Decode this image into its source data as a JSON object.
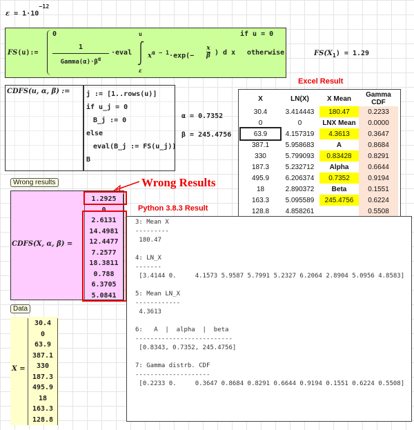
{
  "epsilon": {
    "lhs": "ε",
    "rhs": "1·10",
    "exp": "−12"
  },
  "fs_def": {
    "name": "FS",
    "arg": "u",
    "assign": ":=",
    "case1_value": "0",
    "case1_cond": "if  u = 0",
    "numerator": "1",
    "denominator": "Gamma(α)·β",
    "den_exp": "α",
    "eval": "·eval",
    "integrand": "x",
    "int_exp": "α − 1",
    "exp_part": "·exp(−",
    "frac_num": "x",
    "frac_den": "β",
    "dx": ") d x",
    "upper": "u",
    "lower": "ε",
    "case2_cond": "otherwise",
    "bg": "#ccff99"
  },
  "fs_eval": {
    "expr": "FS(X",
    "sub": "1",
    "close": ")",
    "eq": "=",
    "value": "1.29"
  },
  "cdfs_def": {
    "header": "CDFS(u, α, β) :=",
    "lines": [
      "j := [1..rows(u)]",
      "if u_j = 0",
      "B_j := 0",
      "else",
      "eval(B_j := FS(u_j))",
      "B"
    ]
  },
  "params": {
    "alpha": "α = 0.7352",
    "beta": "β = 245.4756"
  },
  "excel": {
    "title": "Excel Result",
    "headers": [
      "X",
      "LN(X)",
      "X Mean",
      "Gamma CDF"
    ],
    "rows": [
      [
        "30.4",
        "3.414443",
        "180.47",
        "0.2233"
      ],
      [
        "0",
        "0",
        "LNX Mean",
        "0.0000"
      ],
      [
        "63.9",
        "4.157319",
        "4.3613",
        "0.3647"
      ],
      [
        "387.1",
        "5.958683",
        "A",
        "0.8684"
      ],
      [
        "330",
        "5.799093",
        "0.83428",
        "0.8291"
      ],
      [
        "187.3",
        "5.232712",
        "Alpha",
        "0.6644"
      ],
      [
        "495.9",
        "6.206374",
        "0.7352",
        "0.9194"
      ],
      [
        "18",
        "2.890372",
        "Beta",
        "0.1551"
      ],
      [
        "163.3",
        "5.095589",
        "245.4756",
        "0.6224"
      ],
      [
        "128.8",
        "4.858261",
        "",
        "0.5508"
      ]
    ],
    "highlight": "#ffff00",
    "cdf_bg": "#fce4d6"
  },
  "wrong": {
    "label": "Wrong results",
    "annotation": "Wrong Results",
    "expr": "CDFS(X, α, β) =",
    "values": [
      "1.2925",
      "0",
      "2.6131",
      "14.4981",
      "12.4477",
      "7.2577",
      "18.3811",
      "0.788",
      "6.3705",
      "5.0841"
    ],
    "bg": "#ffccff"
  },
  "python": {
    "title": "Python 3.8.3  Result",
    "text": "3: Mean X\n---------\n 180.47\n\n4: LN_X\n-------\n [3.4144 0.     4.1573 5.9587 5.7991 5.2327 6.2064 2.8904 5.0956 4.8583]\n\n5: Mean LN_X\n------------\n 4.3613\n\n6:   A  |  alpha  |  beta\n--------------------------\n [0.8343, 0.7352, 245.4756]\n\n7: Gamma distrb. CDF\n--------------------\n [0.2233 0.     0.3647 0.8684 0.8291 0.6644 0.9194 0.1551 0.6224 0.5508]"
  },
  "data": {
    "label": "Data",
    "var": "X =",
    "values": [
      "30.4",
      "0",
      "63.9",
      "387.1",
      "330",
      "187.3",
      "495.9",
      "18",
      "163.3",
      "128.8"
    ],
    "bg": "#ffffcc"
  }
}
